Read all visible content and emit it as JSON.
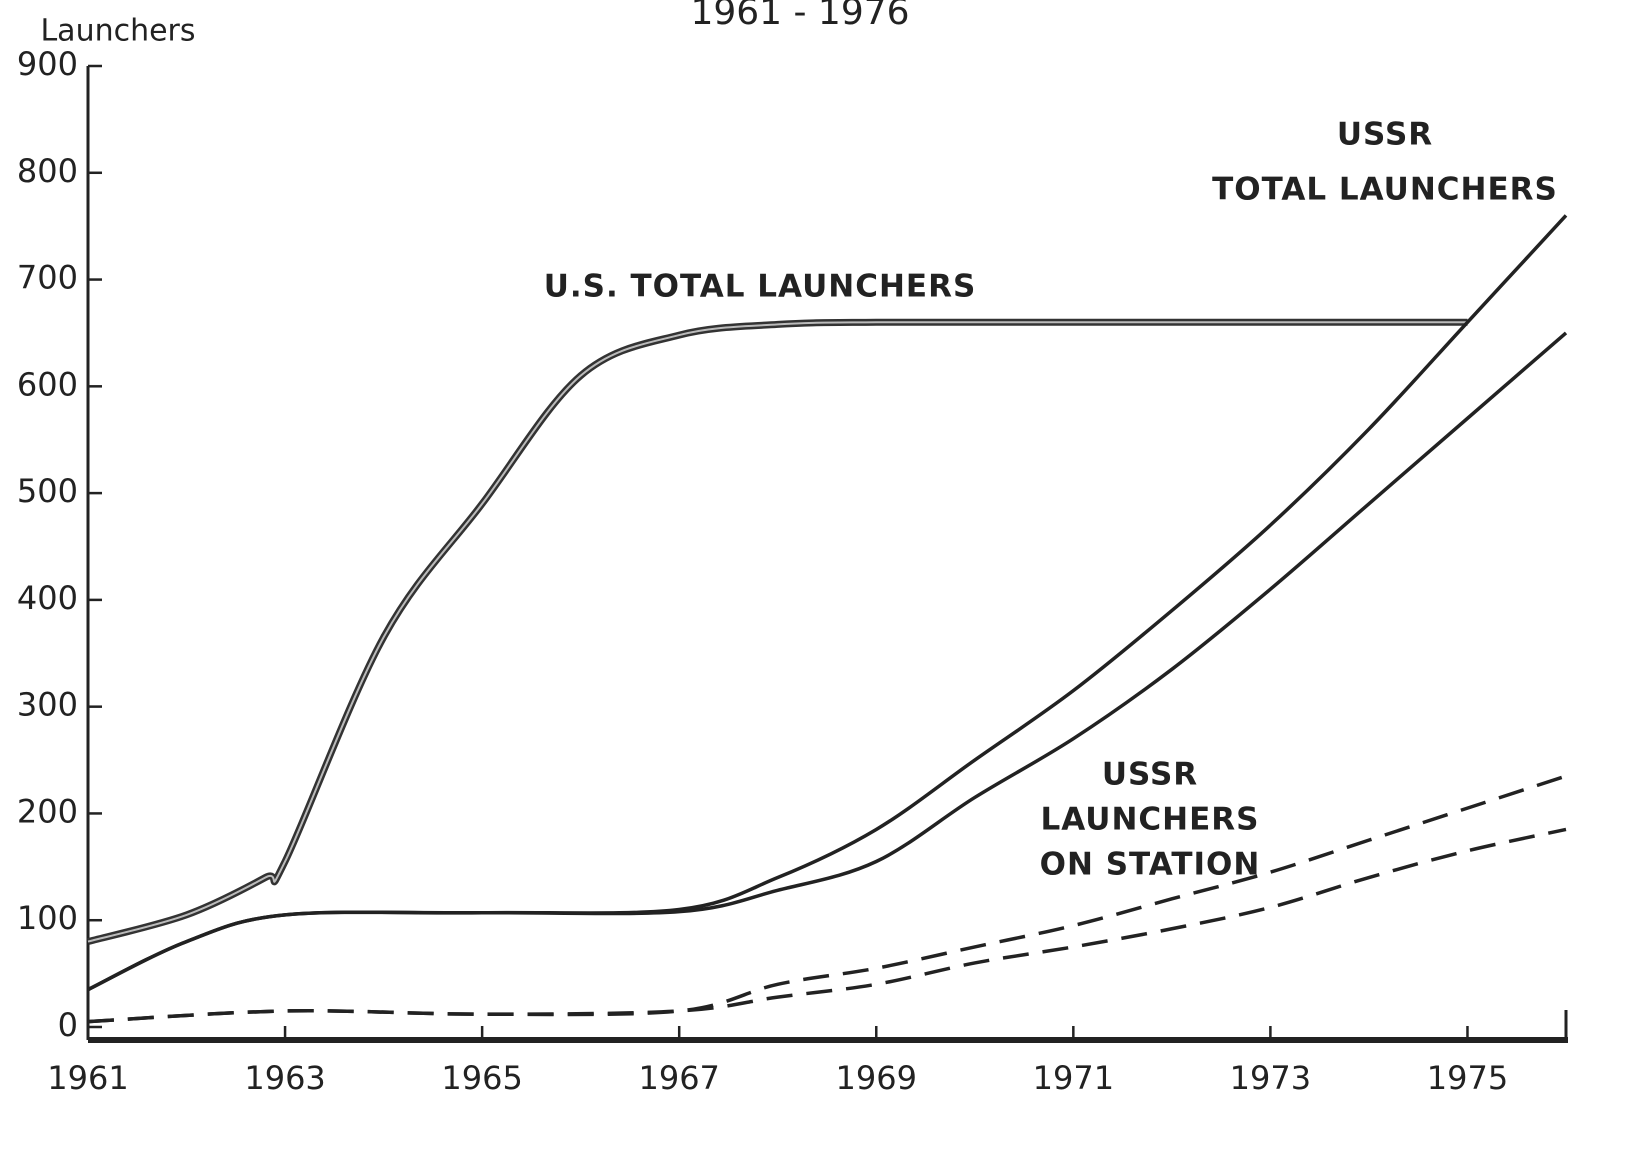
{
  "chart_data": {
    "type": "line",
    "title": "1961 - 1976",
    "y_label": "Launchers",
    "xlim": [
      1961,
      1976
    ],
    "ylim": [
      0,
      900
    ],
    "xticks": [
      1961,
      1963,
      1965,
      1967,
      1969,
      1971,
      1973,
      1975
    ],
    "yticks": [
      0,
      100,
      200,
      300,
      400,
      500,
      600,
      700,
      800,
      900
    ],
    "series": [
      {
        "name": [
          "U.S. TOTAL LAUNCHERS"
        ],
        "color": "#333333",
        "style": "double",
        "x": [
          1961,
          1962,
          1962.8,
          1963,
          1964,
          1965,
          1966,
          1967,
          1968,
          1969,
          1971,
          1973,
          1975
        ],
        "values": [
          80,
          105,
          140,
          155,
          365,
          490,
          610,
          648,
          658,
          660,
          660,
          660,
          660
        ]
      },
      {
        "name": [
          "USSR",
          "TOTAL LAUNCHERS"
        ],
        "color": "#222222",
        "style": "solid",
        "x": [
          1961,
          1962,
          1963,
          1965,
          1967,
          1968,
          1969,
          1970,
          1971,
          1972,
          1973,
          1974,
          1975,
          1976
        ],
        "upper": [
          35,
          80,
          105,
          107,
          110,
          140,
          185,
          250,
          315,
          390,
          470,
          560,
          660,
          760
        ],
        "lower": [
          35,
          80,
          105,
          107,
          108,
          128,
          155,
          215,
          270,
          335,
          410,
          490,
          570,
          650
        ]
      },
      {
        "name": [
          "USSR",
          "LAUNCHERS",
          "ON STATION"
        ],
        "color": "#222222",
        "style": "dashed",
        "x": [
          1961,
          1963,
          1965,
          1967,
          1968,
          1969,
          1970,
          1971,
          1972,
          1973,
          1974,
          1975,
          1976
        ],
        "upper": [
          5,
          15,
          12,
          15,
          40,
          55,
          75,
          95,
          120,
          145,
          175,
          205,
          235
        ],
        "lower": [
          5,
          15,
          12,
          15,
          28,
          40,
          60,
          75,
          92,
          112,
          140,
          165,
          185
        ]
      }
    ]
  }
}
